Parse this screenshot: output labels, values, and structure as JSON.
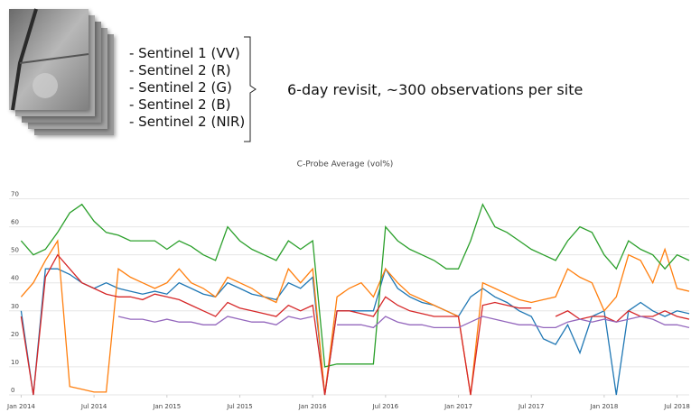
{
  "header": {
    "bands": [
      "- Sentinel 1 (VV)",
      "- Sentinel 2 (R)",
      "- Sentinel 2 (G)",
      "- Sentinel 2 (B)",
      "- Sentinel 2 (NIR)"
    ],
    "summary": "6-day revisit, ~300 observations per site"
  },
  "chart_data": {
    "type": "line",
    "title": "C-Probe Average (vol%)",
    "x": [
      "2014-01",
      "2014-02",
      "2014-03",
      "2014-04",
      "2014-05",
      "2014-06",
      "2014-07",
      "2014-08",
      "2014-09",
      "2014-10",
      "2014-11",
      "2014-12",
      "2015-01",
      "2015-02",
      "2015-03",
      "2015-04",
      "2015-05",
      "2015-06",
      "2015-07",
      "2015-08",
      "2015-09",
      "2015-10",
      "2015-11",
      "2015-12",
      "2016-01",
      "2016-02",
      "2016-03",
      "2016-04",
      "2016-05",
      "2016-06",
      "2016-07",
      "2016-08",
      "2016-09",
      "2016-10",
      "2016-11",
      "2016-12",
      "2017-01",
      "2017-02",
      "2017-03",
      "2017-04",
      "2017-05",
      "2017-06",
      "2017-07",
      "2017-08",
      "2017-09",
      "2017-10",
      "2017-11",
      "2017-12",
      "2018-01",
      "2018-02",
      "2018-03",
      "2018-04",
      "2018-05",
      "2018-06",
      "2018-07",
      "2018-08"
    ],
    "series": [
      {
        "color": "#1f77b4",
        "values": [
          30,
          0,
          45,
          45,
          43,
          40,
          38,
          40,
          38,
          37,
          36,
          37,
          36,
          40,
          38,
          36,
          35,
          40,
          38,
          36,
          35,
          34,
          40,
          38,
          42,
          0,
          30,
          30,
          30,
          30,
          45,
          38,
          35,
          33,
          32,
          30,
          28,
          35,
          38,
          35,
          33,
          30,
          28,
          20,
          18,
          25,
          15,
          28,
          30,
          0,
          30,
          33,
          30,
          28,
          30,
          29
        ]
      },
      {
        "color": "#ff7f0e",
        "values": [
          35,
          40,
          48,
          55,
          3,
          2,
          1,
          1,
          45,
          42,
          40,
          38,
          40,
          45,
          40,
          38,
          35,
          42,
          40,
          38,
          35,
          33,
          45,
          40,
          45,
          0,
          35,
          38,
          40,
          35,
          45,
          40,
          36,
          34,
          32,
          30,
          28,
          0,
          40,
          38,
          36,
          34,
          33,
          34,
          35,
          45,
          42,
          40,
          30,
          35,
          50,
          48,
          40,
          52,
          38,
          37
        ]
      },
      {
        "color": "#2ca02c",
        "values": [
          55,
          50,
          52,
          58,
          65,
          68,
          62,
          58,
          57,
          55,
          55,
          55,
          52,
          55,
          53,
          50,
          48,
          60,
          55,
          52,
          50,
          48,
          55,
          52,
          55,
          10,
          11,
          11,
          11,
          11,
          60,
          55,
          52,
          50,
          48,
          45,
          45,
          55,
          68,
          60,
          58,
          55,
          52,
          50,
          48,
          55,
          60,
          58,
          50,
          45,
          55,
          52,
          50,
          45,
          50,
          48
        ]
      },
      {
        "color": "#d62728",
        "values": [
          28,
          0,
          42,
          50,
          45,
          40,
          38,
          36,
          35,
          35,
          34,
          36,
          35,
          34,
          32,
          30,
          28,
          33,
          31,
          30,
          29,
          28,
          32,
          30,
          32,
          0,
          30,
          30,
          29,
          28,
          35,
          32,
          30,
          29,
          28,
          28,
          28,
          0,
          32,
          33,
          32,
          31,
          31,
          null,
          28,
          30,
          27,
          28,
          28,
          26,
          30,
          28,
          28,
          30,
          28,
          27
        ]
      },
      {
        "color": "#9467bd",
        "values": [
          null,
          null,
          null,
          null,
          null,
          null,
          null,
          null,
          28,
          27,
          27,
          26,
          27,
          26,
          26,
          25,
          25,
          28,
          27,
          26,
          26,
          25,
          28,
          27,
          28,
          null,
          25,
          25,
          25,
          24,
          28,
          26,
          25,
          25,
          24,
          24,
          24,
          26,
          28,
          27,
          26,
          25,
          25,
          24,
          24,
          26,
          27,
          26,
          27,
          26,
          27,
          28,
          27,
          25,
          25,
          24
        ]
      }
    ],
    "xlim": [
      "2013-12",
      "2018-08"
    ],
    "xticks": [
      {
        "value": "2014-01",
        "label": "Jan 2014"
      },
      {
        "value": "2014-07",
        "label": "Jul 2014"
      },
      {
        "value": "2015-01",
        "label": "Jan 2015"
      },
      {
        "value": "2015-07",
        "label": "Jul 2015"
      },
      {
        "value": "2016-01",
        "label": "Jan 2016"
      },
      {
        "value": "2016-07",
        "label": "Jul 2016"
      },
      {
        "value": "2017-01",
        "label": "Jan 2017"
      },
      {
        "value": "2017-07",
        "label": "Jul 2017"
      },
      {
        "value": "2018-01",
        "label": "Jan 2018"
      },
      {
        "value": "2018-07",
        "label": "Jul 2018"
      }
    ],
    "ylim": [
      0,
      75
    ],
    "yticks": [
      0,
      10,
      20,
      30,
      40,
      50,
      60,
      70
    ],
    "grid": true
  }
}
